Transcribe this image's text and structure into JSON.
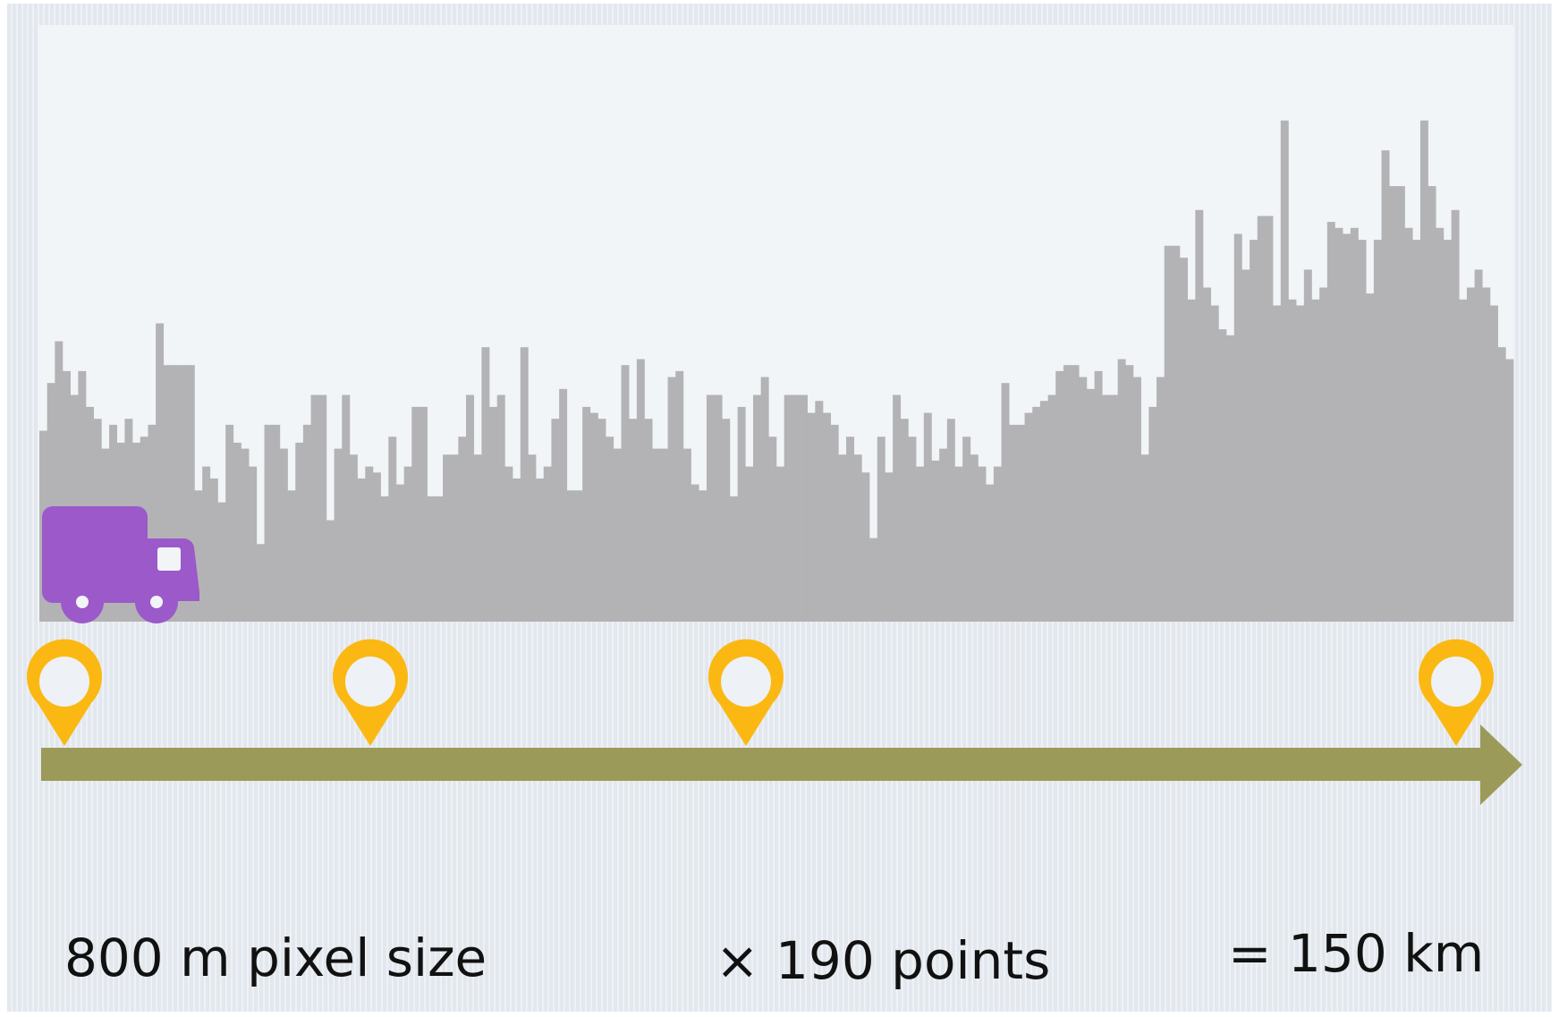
{
  "chart_data": {
    "type": "bar",
    "values": [
      32,
      40,
      47,
      42,
      38,
      42,
      36,
      34,
      29,
      33,
      30,
      34,
      30,
      31,
      33,
      50,
      43,
      43,
      43,
      43,
      22,
      26,
      24,
      20,
      33,
      30,
      29,
      26,
      13,
      33,
      33,
      29,
      22,
      30,
      33,
      38,
      38,
      17,
      29,
      38,
      28,
      24,
      26,
      25,
      21,
      31,
      23,
      26,
      36,
      36,
      21,
      21,
      28,
      28,
      31,
      38,
      28,
      46,
      36,
      38,
      26,
      24,
      46,
      28,
      24,
      26,
      34,
      39,
      22,
      22,
      36,
      35,
      34,
      31,
      29,
      43,
      34,
      44,
      34,
      29,
      29,
      41,
      42,
      29,
      23,
      22,
      38,
      38,
      34,
      21,
      36,
      26,
      38,
      41,
      31,
      26,
      38,
      38,
      38,
      35,
      37,
      35,
      33,
      28,
      31,
      28,
      25,
      14,
      31,
      25,
      38,
      34,
      31,
      26,
      35,
      27,
      29,
      34,
      26,
      31,
      28,
      26,
      23,
      26,
      40,
      33,
      33,
      35,
      36,
      37,
      38,
      42,
      43,
      43,
      41,
      39,
      42,
      38,
      38,
      44,
      43,
      41,
      28,
      36,
      41,
      63,
      63,
      61,
      54,
      69,
      56,
      53,
      49,
      48,
      65,
      59,
      64,
      68,
      68,
      53,
      84,
      54,
      53,
      59,
      54,
      56,
      67,
      66,
      65,
      66,
      64,
      55,
      64,
      79,
      73,
      73,
      66,
      64,
      84,
      73,
      66,
      64,
      69,
      54,
      56,
      59,
      56,
      53,
      46,
      44
    ],
    "color": "#b3b3b5",
    "ylim": [
      0,
      100
    ],
    "annotations": [
      "800 m pixel size",
      "× 190 points",
      "= 150 km"
    ]
  }
}
